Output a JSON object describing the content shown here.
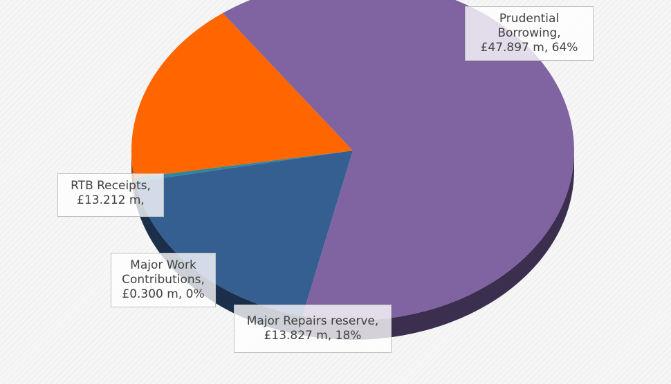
{
  "chart_data": {
    "type": "pie",
    "is_3d": true,
    "legend": "none",
    "slices": [
      {
        "name": "Prudential Borrowing",
        "value": 47.897,
        "label_lines": [
          "Prudential",
          "Borrowing,",
          "£47.897 m, 64%"
        ],
        "color": "#8064a2",
        "side_color": "#3c2e4f"
      },
      {
        "name": "Major Repairs reserve",
        "value": 13.827,
        "label_lines": [
          "Major Repairs reserve,",
          "£13.827 m, 18%"
        ],
        "color": "#355e91",
        "side_color": "#1b2f4a"
      },
      {
        "name": "Major Work Contributions",
        "value": 0.3,
        "label_lines": [
          "Major Work",
          "Contributions,",
          "£0.300 m, 0%"
        ],
        "color": "#31859c",
        "side_color": "#1a4a56"
      },
      {
        "name": "RTB Receipts",
        "value": 13.212,
        "label_lines": [
          "RTB Receipts,",
          "£13.212 m,"
        ],
        "color": "#ff6600",
        "side_color": "#9a3e00"
      }
    ]
  }
}
